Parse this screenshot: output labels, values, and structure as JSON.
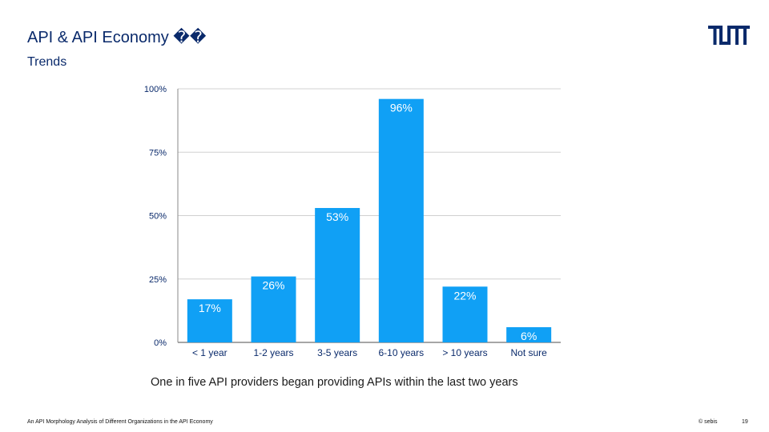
{
  "header": {
    "title": "API & API Economy ��",
    "subtitle": "Trends"
  },
  "logo": {
    "name": "tum-logo-icon",
    "color": "#0a2a6b"
  },
  "caption": "One in five API providers began providing APIs within the last two years",
  "footer": {
    "source": "An API Morphology Analysis of Different Organizations in the API Economy",
    "copyright": "© sebis",
    "page": "19"
  },
  "colors": {
    "bar": "#10a0f5",
    "grid": "#d0d0d0",
    "axis": "#888888",
    "text": "#0a2a6b"
  },
  "chart_data": {
    "type": "bar",
    "categories": [
      "< 1 year",
      "1-2 years",
      "3-5 years",
      "6-10 years",
      "> 10 years",
      "Not sure"
    ],
    "values": [
      17,
      26,
      53,
      96,
      22,
      6
    ],
    "data_labels": [
      "17%",
      "26%",
      "53%",
      "96%",
      "22%",
      "6%"
    ],
    "y_ticks": [
      0,
      25,
      50,
      75,
      100
    ],
    "y_tick_labels": [
      "0%",
      "25%",
      "50%",
      "75%",
      "100%"
    ],
    "ylim": [
      0,
      100
    ],
    "grid": true
  }
}
